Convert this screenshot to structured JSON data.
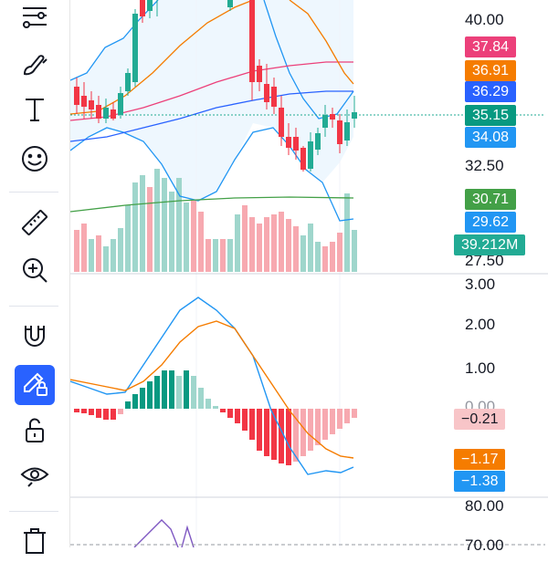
{
  "toolbar": {
    "tools": [
      {
        "name": "trend-tools-icon",
        "active": false
      },
      {
        "name": "brush-icon",
        "active": false
      },
      {
        "name": "text-icon",
        "active": false
      },
      {
        "name": "emoji-icon",
        "active": false
      },
      {
        "name": "ruler-icon",
        "active": false
      },
      {
        "name": "zoom-in-icon",
        "active": false
      },
      {
        "name": "magnet-icon",
        "active": false
      },
      {
        "name": "lock-drawing-icon",
        "active": true
      },
      {
        "name": "unlock-icon",
        "active": false
      },
      {
        "name": "eye-icon",
        "active": false
      },
      {
        "name": "trash-icon",
        "active": false
      }
    ]
  },
  "price_axis": {
    "ticks": [
      "40.00",
      "32.50",
      "27.50"
    ],
    "badges": [
      {
        "text": "37.84",
        "color": "#ec407a"
      },
      {
        "text": "36.91",
        "color": "#f57c00"
      },
      {
        "text": "36.29",
        "color": "#2962ff"
      },
      {
        "text": "35.15",
        "color": "#089981"
      },
      {
        "text": "34.08",
        "color": "#2196f3"
      },
      {
        "text": "30.71",
        "color": "#43a047"
      },
      {
        "text": "29.62",
        "color": "#2196f3"
      },
      {
        "text": "39.212M",
        "color": "#22ab94"
      }
    ]
  },
  "macd_axis": {
    "ticks": [
      "3.00",
      "2.00",
      "1.00",
      "0.00"
    ],
    "badges": [
      {
        "text": "−0.21",
        "color": "#f8c5c8",
        "text_color": "#131722"
      },
      {
        "text": "−1.17",
        "color": "#f57c00",
        "text_color": "#ffffff"
      },
      {
        "text": "−1.38",
        "color": "#2196f3",
        "text_color": "#ffffff"
      }
    ]
  },
  "rsi_axis": {
    "ticks": [
      "80.00",
      "70.00"
    ]
  },
  "colors": {
    "up": "#22ab94",
    "down": "#f23645",
    "macd_line": "#2196f3",
    "signal_line": "#f57c00",
    "bb": "#2196f3",
    "rsi": "#7e57c2"
  }
}
